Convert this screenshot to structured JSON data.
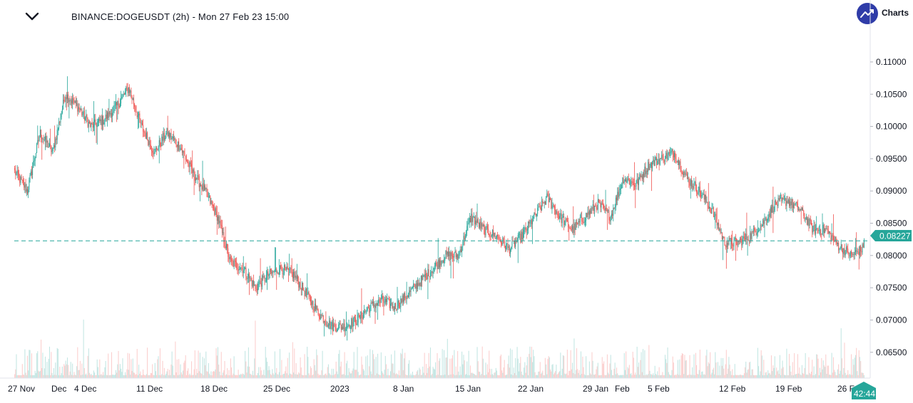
{
  "header": {
    "collapse_icon": "chevron-down-icon",
    "symbol_title": "BINANCE:DOGEUSDT (2h) - Mon 27 Feb 23 15:00",
    "logo_icon": "trend-up-icon",
    "logo_text": "Charts"
  },
  "colors": {
    "up": "#26a69a",
    "down": "#ef5350",
    "price_line": "#26a69a",
    "badge": "#26a69a",
    "logo": "#2f3ca8"
  },
  "chart_data": {
    "type": "candlestick",
    "symbol": "BINANCE:DOGEUSDT",
    "interval": "2h",
    "ylim": [
      0.061,
      0.1175
    ],
    "y_ticks": [
      "0.11000",
      "0.10500",
      "0.10000",
      "0.09500",
      "0.09000",
      "0.08500",
      "0.08000",
      "0.07500",
      "0.07000",
      "0.06500"
    ],
    "x_ticks": [
      "27 Nov",
      "Dec",
      "4 Dec",
      "11 Dec",
      "18 Dec",
      "25 Dec",
      "2023",
      "8 Jan",
      "15 Jan",
      "22 Jan",
      "29 Jan",
      "Feb",
      "5 Feb",
      "12 Feb",
      "19 Feb",
      "26 F"
    ],
    "last_price": "0.08227",
    "countdown": "42:44",
    "close_path": [
      [
        0,
        0.093
      ],
      [
        1,
        0.09
      ],
      [
        2,
        0.099
      ],
      [
        3,
        0.096
      ],
      [
        4,
        0.105
      ],
      [
        5,
        0.103
      ],
      [
        6,
        0.1
      ],
      [
        7,
        0.101
      ],
      [
        8,
        0.103
      ],
      [
        9,
        0.106
      ],
      [
        10,
        0.1
      ],
      [
        11,
        0.096
      ],
      [
        12,
        0.099
      ],
      [
        13,
        0.097
      ],
      [
        14,
        0.093
      ],
      [
        15,
        0.09
      ],
      [
        16,
        0.086
      ],
      [
        17,
        0.079
      ],
      [
        18,
        0.078
      ],
      [
        19,
        0.075
      ],
      [
        20,
        0.077
      ],
      [
        21,
        0.078
      ],
      [
        22,
        0.077
      ],
      [
        23,
        0.074
      ],
      [
        24,
        0.071
      ],
      [
        25,
        0.069
      ],
      [
        26,
        0.069
      ],
      [
        27,
        0.07
      ],
      [
        28,
        0.072
      ],
      [
        29,
        0.073
      ],
      [
        30,
        0.072
      ],
      [
        31,
        0.074
      ],
      [
        32,
        0.076
      ],
      [
        33,
        0.078
      ],
      [
        34,
        0.08
      ],
      [
        35,
        0.08
      ],
      [
        36,
        0.086
      ],
      [
        37,
        0.084
      ],
      [
        38,
        0.083
      ],
      [
        39,
        0.081
      ],
      [
        40,
        0.083
      ],
      [
        41,
        0.086
      ],
      [
        42,
        0.089
      ],
      [
        43,
        0.086
      ],
      [
        44,
        0.084
      ],
      [
        45,
        0.086
      ],
      [
        46,
        0.088
      ],
      [
        47,
        0.086
      ],
      [
        48,
        0.092
      ],
      [
        49,
        0.091
      ],
      [
        50,
        0.094
      ],
      [
        51,
        0.095
      ],
      [
        52,
        0.096
      ],
      [
        53,
        0.092
      ],
      [
        54,
        0.09
      ],
      [
        55,
        0.087
      ],
      [
        56,
        0.082
      ],
      [
        57,
        0.082
      ],
      [
        58,
        0.083
      ],
      [
        59,
        0.085
      ],
      [
        60,
        0.088
      ],
      [
        61,
        0.0885
      ],
      [
        62,
        0.087
      ],
      [
        63,
        0.084
      ],
      [
        64,
        0.084
      ],
      [
        65,
        0.0815
      ],
      [
        66,
        0.08
      ],
      [
        67,
        0.0812
      ]
    ]
  }
}
